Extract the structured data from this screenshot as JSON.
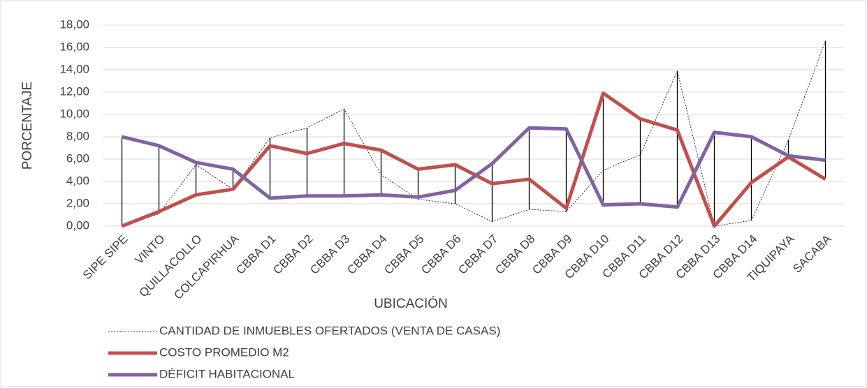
{
  "chart_data": {
    "type": "line",
    "y_label": "PORCENTAJE",
    "x_label": "UBICACIÓN",
    "categories": [
      "SIPE SIPE",
      "VINTO",
      "QUILLACOLLO",
      "COLCAPIRHUA",
      "CBBA D1",
      "CBBA D2",
      "CBBA D3",
      "CBBA D4",
      "CBBA D5",
      "CBBA D6",
      "CBBA D7",
      "CBBA D8",
      "CBBA D9",
      "CBBA D10",
      "CBBA D11",
      "CBBA D12",
      "CBBA D13",
      "CBBA D14",
      "TIQUIPAYA",
      "SACABA"
    ],
    "series": [
      {
        "name": "CANTIDAD DE INMUEBLES OFERTADOS (VENTA DE CASAS)",
        "color": "#000000",
        "dashed": true,
        "values": [
          0.0,
          1.1,
          5.5,
          3.3,
          7.9,
          8.8,
          10.5,
          4.6,
          2.4,
          2.0,
          0.4,
          1.5,
          1.3,
          5.0,
          6.4,
          13.9,
          0.0,
          0.5,
          7.7,
          16.6
        ]
      },
      {
        "name": "COSTO PROMEDIO M2",
        "color": "#c0504d",
        "dashed": false,
        "values": [
          0.0,
          1.3,
          2.8,
          3.3,
          7.2,
          6.5,
          7.4,
          6.8,
          5.1,
          5.5,
          3.8,
          4.2,
          1.6,
          11.9,
          9.6,
          8.6,
          0.0,
          3.9,
          6.2,
          4.2
        ]
      },
      {
        "name": "DÉFICIT HABITACIONAL",
        "color": "#8064a2",
        "dashed": false,
        "values": [
          8.0,
          7.2,
          5.7,
          5.1,
          2.5,
          2.7,
          2.7,
          2.8,
          2.6,
          3.2,
          5.6,
          8.8,
          8.7,
          1.9,
          2.0,
          1.7,
          8.4,
          8.0,
          6.3,
          5.9
        ]
      }
    ],
    "ylim": [
      0,
      18
    ],
    "yticks": [
      {
        "value": 0,
        "label": "0,00"
      },
      {
        "value": 2,
        "label": "2,00"
      },
      {
        "value": 4,
        "label": "4,00"
      },
      {
        "value": 6,
        "label": "6,00"
      },
      {
        "value": 8,
        "label": "8,00"
      },
      {
        "value": 10,
        "label": "10,00"
      },
      {
        "value": 12,
        "label": "12,00"
      },
      {
        "value": 14,
        "label": "14,00"
      },
      {
        "value": 16,
        "label": "16,00"
      },
      {
        "value": 18,
        "label": "18,00"
      }
    ],
    "grid": true,
    "high_low_lines": true,
    "legend": "bottom-left"
  }
}
